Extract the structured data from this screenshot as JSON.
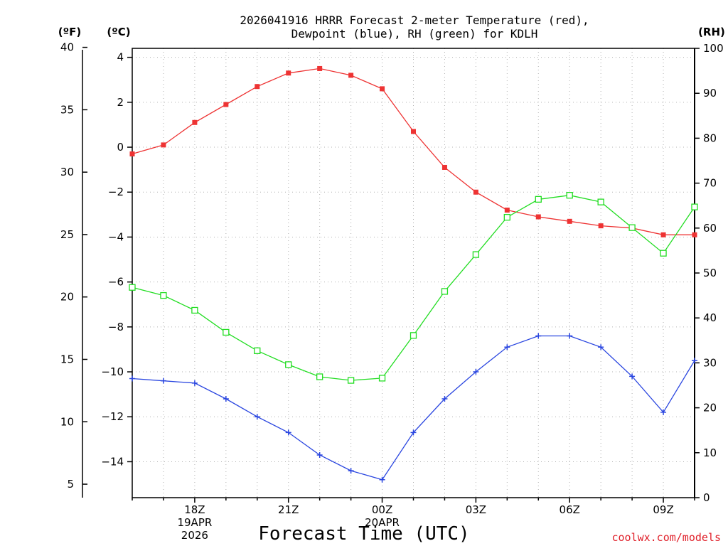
{
  "colors": {
    "temperature": "#ee3333",
    "dewpoint": "#2a46e0",
    "rh": "#22dd22",
    "axis": "#000000",
    "credit": "#e0202a"
  },
  "chart_data": {
    "type": "line",
    "title": [
      "2026041916 HRRR Forecast 2-meter Temperature (red),",
      "Dewpoint (blue), RH (green) for KDLH"
    ],
    "xlabel": "Forecast Time (UTC)",
    "credit": "coolwx.com/models",
    "units": {
      "left_f": "(ºF)",
      "left_c": "(ºC)",
      "right_rh": "(RH)"
    },
    "x_hours": [
      16,
      17,
      18,
      19,
      20,
      21,
      22,
      23,
      24,
      25,
      26,
      27,
      28,
      29,
      30,
      31,
      32,
      33,
      34
    ],
    "x_range": [
      16,
      34
    ],
    "x_ticks": [
      {
        "hour": 18,
        "lines": [
          "18Z",
          "19APR",
          "2026"
        ]
      },
      {
        "hour": 21,
        "lines": [
          "21Z"
        ]
      },
      {
        "hour": 24,
        "lines": [
          "00Z",
          "20APR"
        ]
      },
      {
        "hour": 27,
        "lines": [
          "03Z"
        ]
      },
      {
        "hour": 30,
        "lines": [
          "06Z"
        ]
      },
      {
        "hour": 33,
        "lines": [
          "09Z"
        ]
      }
    ],
    "celsius_axis": {
      "range": [
        -15.6,
        4.4
      ],
      "ticks": [
        4,
        2,
        0,
        -2,
        -4,
        -6,
        -8,
        -10,
        -12,
        -14
      ],
      "tick_labels": [
        "4",
        "2",
        "0",
        "−2",
        "−4",
        "−6",
        "−8",
        "−10",
        "−12",
        "−14"
      ]
    },
    "fahrenheit_axis": {
      "ticks": [
        40,
        35,
        30,
        25,
        20,
        15,
        10,
        5
      ],
      "tick_labels": [
        "40",
        "35",
        "30",
        "25",
        "20",
        "15",
        "10",
        "5"
      ]
    },
    "rh_axis": {
      "range": [
        0,
        100
      ],
      "ticks": [
        100,
        90,
        80,
        70,
        60,
        50,
        40,
        30,
        20,
        10,
        0
      ],
      "tick_labels": [
        "100",
        "90",
        "80",
        "70",
        "60",
        "50",
        "40",
        "30",
        "20",
        "10",
        "0"
      ]
    },
    "series": [
      {
        "name": "Temperature",
        "unit": "C",
        "marker": "filled-square",
        "values": [
          -0.3,
          0.1,
          1.1,
          1.9,
          2.7,
          3.3,
          3.5,
          3.2,
          2.6,
          0.7,
          -0.9,
          -2.0,
          -2.8,
          -3.1,
          -3.3,
          -3.5,
          -3.6,
          -3.9,
          -3.9
        ]
      },
      {
        "name": "Dewpoint",
        "unit": "C",
        "marker": "plus",
        "values": [
          -10.3,
          -10.4,
          -10.5,
          -11.2,
          -12.0,
          -12.7,
          -13.7,
          -14.4,
          -14.8,
          -12.7,
          -11.2,
          -10.0,
          -8.9,
          -8.4,
          -8.4,
          -8.9,
          -10.2,
          -11.8,
          -9.5
        ]
      },
      {
        "name": "RH",
        "unit": "%",
        "marker": "open-square",
        "values": [
          46.8,
          45.0,
          41.7,
          36.8,
          32.7,
          29.6,
          26.9,
          26.1,
          26.6,
          36.1,
          45.9,
          54.1,
          62.4,
          66.4,
          67.3,
          65.8,
          60.1,
          54.4,
          64.7
        ]
      }
    ]
  }
}
